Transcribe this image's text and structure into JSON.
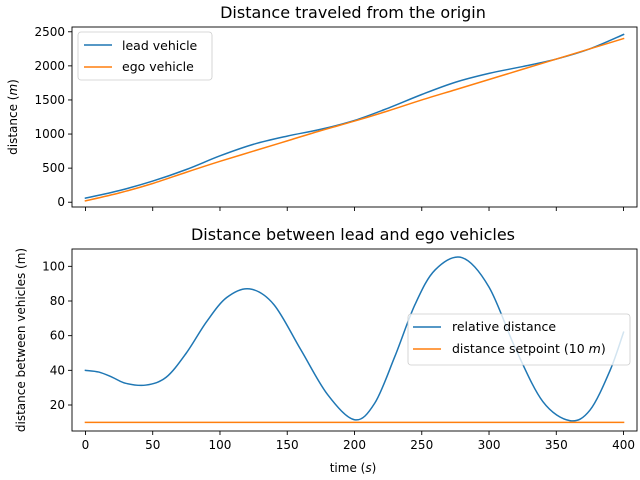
{
  "chart_data": [
    {
      "type": "line",
      "title": "Distance traveled from the origin",
      "xlabel": "",
      "ylabel_main": "distance (",
      "ylabel_unit": "m",
      "ylabel_close": ")",
      "xlim": [
        -10,
        410
      ],
      "ylim": [
        -70,
        2570
      ],
      "xticks": [
        0,
        50,
        100,
        150,
        200,
        250,
        300,
        350,
        400
      ],
      "show_xtick_labels": false,
      "yticks": [
        0,
        500,
        1000,
        1500,
        2000,
        2500
      ],
      "grid": false,
      "legend_position": "upper-left",
      "series": [
        {
          "name": "lead vehicle",
          "color": "#1f77b4",
          "x": [
            0,
            25,
            50,
            75,
            100,
            125,
            150,
            175,
            200,
            225,
            250,
            275,
            300,
            325,
            350,
            375,
            400
          ],
          "y": [
            60,
            170,
            310,
            480,
            680,
            850,
            970,
            1070,
            1200,
            1380,
            1580,
            1760,
            1890,
            1990,
            2100,
            2250,
            2460
          ]
        },
        {
          "name": "ego vehicle",
          "color": "#ff7f0e",
          "x": [
            0,
            25,
            50,
            75,
            100,
            125,
            150,
            175,
            200,
            225,
            250,
            275,
            300,
            325,
            350,
            375,
            400
          ],
          "y": [
            20,
            135,
            275,
            440,
            600,
            750,
            900,
            1050,
            1190,
            1340,
            1500,
            1650,
            1800,
            1950,
            2100,
            2250,
            2400
          ]
        }
      ]
    },
    {
      "type": "line",
      "title": "Distance between lead and ego vehicles",
      "xlabel_main": "time (",
      "xlabel_unit": "s",
      "xlabel_close": ")",
      "ylabel": "distance between vehicles (m)",
      "xlim": [
        -10,
        410
      ],
      "ylim": [
        5,
        110
      ],
      "xticks": [
        0,
        50,
        100,
        150,
        200,
        250,
        300,
        350,
        400
      ],
      "show_xtick_labels": true,
      "yticks": [
        20,
        40,
        60,
        80,
        100
      ],
      "grid": false,
      "legend_position": "center-right",
      "series": [
        {
          "name": "relative distance",
          "color": "#1f77b4",
          "x": [
            0,
            10,
            20,
            30,
            45,
            60,
            75,
            90,
            105,
            122,
            140,
            160,
            180,
            200,
            215,
            230,
            245,
            260,
            280,
            300,
            320,
            340,
            360,
            375,
            390,
            400
          ],
          "y": [
            40,
            39,
            36,
            32.5,
            31.5,
            36,
            50,
            68,
            82,
            87,
            78,
            52,
            26,
            11.5,
            21,
            48,
            78,
            98,
            105,
            88,
            52,
            22,
            11,
            17,
            40,
            62
          ]
        },
        {
          "name_main": "distance setpoint (10 ",
          "name_unit": "m",
          "name_close": ")",
          "color": "#ff7f0e",
          "x": [
            0,
            400
          ],
          "y": [
            10,
            10
          ]
        }
      ]
    }
  ]
}
